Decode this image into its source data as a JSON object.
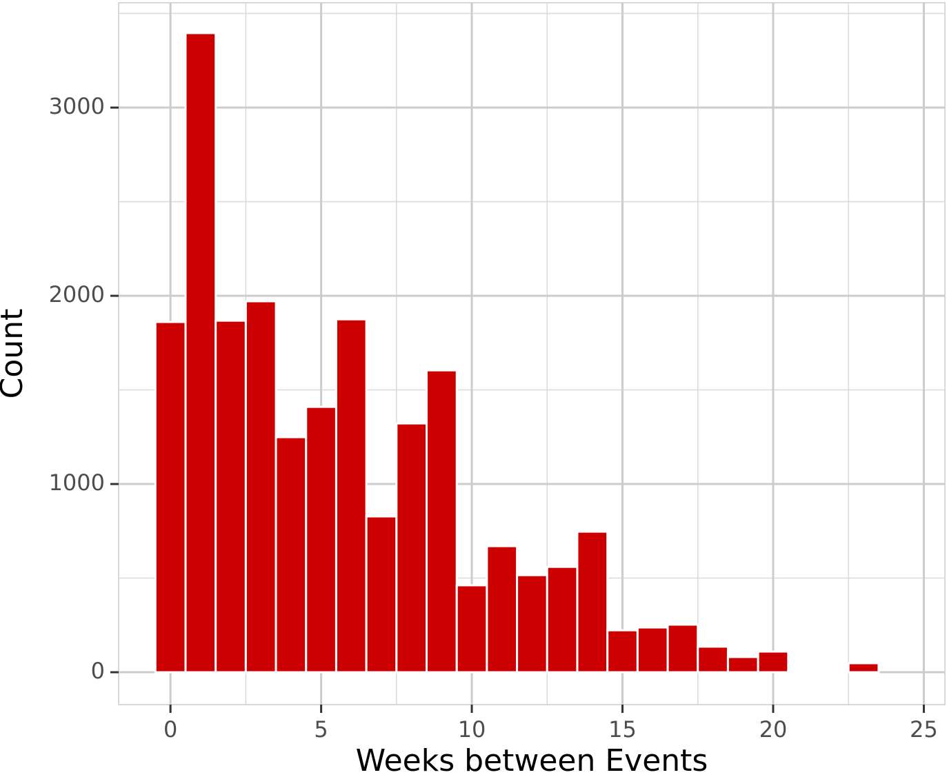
{
  "chart_data": {
    "type": "histogram",
    "x_label": "Weeks between Events",
    "y_label": "Count",
    "bins": [
      -0.5,
      0.5,
      1.5,
      2.5,
      3.5,
      4.5,
      5.5,
      6.5,
      7.5,
      8.5,
      9.5,
      10.5,
      11.5,
      12.5,
      13.5,
      14.5,
      15.5,
      16.5,
      17.5,
      18.5,
      19.5,
      20.5,
      21.5,
      22.5,
      23.5,
      24.5,
      25.5
    ],
    "values": [
      1861,
      3396,
      1868,
      1971,
      1249,
      1410,
      1875,
      828,
      1322,
      1604,
      462,
      670,
      516,
      560,
      747,
      223,
      238,
      253,
      136,
      81,
      110,
      11,
      3,
      48,
      0,
      0
    ],
    "color": "#cc0000",
    "xlim": [
      -1.72,
      25.7
    ],
    "xticks": [
      0,
      5,
      10,
      15,
      20,
      25
    ],
    "ylim": [
      -172,
      3557
    ],
    "yticks": [
      0,
      1000,
      2000,
      3000
    ],
    "grid": true
  }
}
